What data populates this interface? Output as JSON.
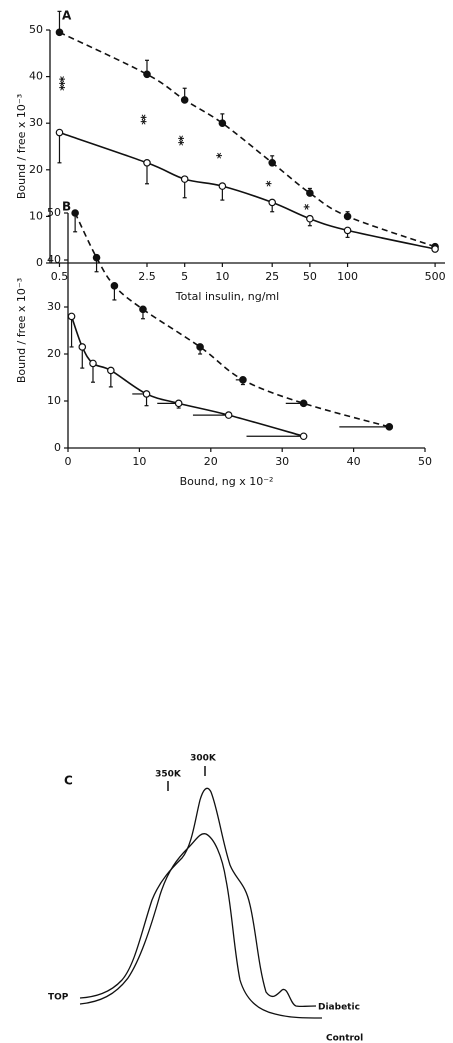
{
  "chart_data": [
    {
      "type": "line",
      "panel_label": "A",
      "x_label": "Total insulin, ng/ml",
      "y_label": "Bound / free x 10⁻³",
      "xscale": "log",
      "xlim": [
        0.42,
        600
      ],
      "xticks": [
        0.5,
        2.5,
        5,
        10,
        25,
        50,
        100,
        500
      ],
      "ylim": [
        0,
        50
      ],
      "yticks": [
        0,
        10,
        20,
        30,
        40,
        50
      ],
      "x": [
        0.5,
        2.5,
        5,
        10,
        25,
        50,
        100,
        500
      ],
      "series": [
        {
          "marker": "filled",
          "line_style": "dashed",
          "color": "#111111",
          "error_direction": "up",
          "values": [
            49.5,
            40.5,
            35,
            30,
            21.5,
            15,
            10,
            3.5
          ],
          "errors": [
            4.5,
            3,
            2.5,
            2,
            1.5,
            1,
            1,
            0.5
          ]
        },
        {
          "marker": "open",
          "line_style": "solid",
          "color": "#111111",
          "error_direction": "down",
          "values": [
            28,
            21.5,
            18,
            16.5,
            13,
            9.5,
            7,
            3
          ],
          "errors": [
            6.5,
            4.5,
            4,
            3,
            2,
            1.5,
            1.5,
            0.5
          ]
        }
      ],
      "significance": [
        "***",
        "**",
        "**",
        "*",
        "*",
        "*",
        null,
        null
      ]
    },
    {
      "type": "scatter",
      "panel_label": "B",
      "x_label": "Bound, ng x 10⁻²",
      "y_label": "Bound / free x 10⁻³",
      "xlim": [
        0,
        50
      ],
      "xticks": [
        0,
        10,
        20,
        30,
        40,
        50
      ],
      "ylim": [
        0,
        50
      ],
      "yticks": [
        0,
        10,
        20,
        30,
        40,
        50
      ],
      "series": [
        {
          "marker": "filled",
          "line_style": "dashed",
          "color": "#111111",
          "error_direction": "down",
          "x": [
            1,
            4,
            6.5,
            10.5,
            18.5,
            24.5,
            33,
            45
          ],
          "values": [
            50,
            40.5,
            34.5,
            29.5,
            21.5,
            14.5,
            9.5,
            4.5
          ],
          "errors": [
            4,
            3,
            3,
            2,
            1.5,
            1,
            0.5,
            0
          ],
          "xerrors": [
            0,
            0,
            0,
            0,
            0,
            1,
            2.5,
            7
          ]
        },
        {
          "marker": "open",
          "line_style": "solid",
          "color": "#111111",
          "error_direction": "down",
          "x": [
            0.5,
            2,
            3.5,
            6,
            11,
            15.5,
            22.5,
            33
          ],
          "values": [
            28,
            21.5,
            18,
            16.5,
            11.5,
            9.5,
            7,
            2.5
          ],
          "errors": [
            6.5,
            4.5,
            4,
            3.5,
            2.5,
            1,
            0.5,
            0
          ],
          "xerrors": [
            0,
            0,
            0,
            0,
            2,
            3,
            5,
            8
          ]
        }
      ]
    },
    {
      "type": "profile",
      "panel_label": "C",
      "marker_labels": [
        "300K",
        "350K"
      ],
      "start_label": "TOP",
      "curve_labels": [
        "Diabetic",
        "Control"
      ]
    }
  ]
}
